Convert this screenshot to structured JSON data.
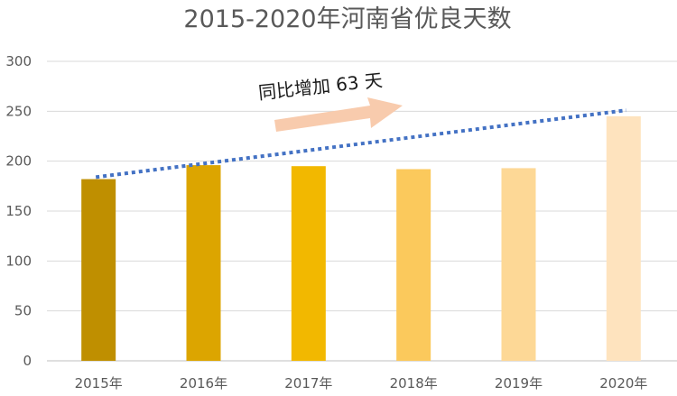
{
  "chart_data": {
    "type": "bar",
    "title": "2015-2020年河南省优良天数",
    "categories": [
      "2015年",
      "2016年",
      "2017年",
      "2018年",
      "2019年",
      "2020年"
    ],
    "values": [
      182,
      196,
      195,
      192,
      193,
      245
    ],
    "bar_colors": [
      "#BF8F00",
      "#DCA500",
      "#F2B800",
      "#FBC95C",
      "#FDD896",
      "#FEE3BE"
    ],
    "ylim": [
      0,
      300
    ],
    "yticks": [
      0,
      50,
      100,
      150,
      200,
      250,
      300
    ],
    "grid": true,
    "legend": "none",
    "trendline": {
      "style": "dotted",
      "color": "#4472C4",
      "start": 184,
      "end": 251
    },
    "annotation": {
      "text": "同比增加 63 天",
      "arrow_color": "#F8CBAD"
    }
  }
}
